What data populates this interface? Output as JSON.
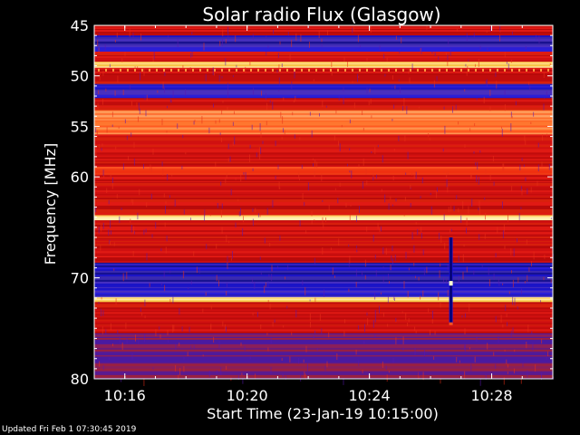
{
  "chart_data": {
    "type": "heatmap",
    "title": "Solar radio Flux (Glasgow)",
    "xlabel": "Start Time (23-Jan-19 10:15:00)",
    "ylabel": "Frequency [MHz]",
    "xlim": [
      "10:15:00",
      "10:30:00"
    ],
    "ylim": [
      45,
      80
    ],
    "y_inverted": true,
    "x_ticks": [
      "10:16",
      "10:20",
      "10:24",
      "10:28"
    ],
    "y_ticks": [
      45,
      50,
      55,
      60,
      70,
      80
    ],
    "grid": false,
    "colormap": "red-temperature (blue = low, red = medium, yellow/white = high)",
    "frequency_bands": [
      {
        "from": 45.0,
        "to": 46.0,
        "level": "medium"
      },
      {
        "from": 46.0,
        "to": 47.6,
        "level": "low"
      },
      {
        "from": 47.6,
        "to": 48.6,
        "level": "medium"
      },
      {
        "from": 48.6,
        "to": 49.2,
        "level": "very-high"
      },
      {
        "from": 49.2,
        "to": 50.8,
        "level": "medium"
      },
      {
        "from": 50.8,
        "to": 52.2,
        "level": "low"
      },
      {
        "from": 52.2,
        "to": 53.4,
        "level": "medium"
      },
      {
        "from": 53.4,
        "to": 55.8,
        "level": "high"
      },
      {
        "from": 55.8,
        "to": 59.0,
        "level": "medium"
      },
      {
        "from": 59.0,
        "to": 59.8,
        "level": "medium-high"
      },
      {
        "from": 59.8,
        "to": 63.8,
        "level": "medium"
      },
      {
        "from": 63.8,
        "to": 64.3,
        "level": "very-high"
      },
      {
        "from": 64.3,
        "to": 68.5,
        "level": "medium"
      },
      {
        "from": 68.5,
        "to": 71.9,
        "level": "low"
      },
      {
        "from": 71.9,
        "to": 72.4,
        "level": "very-high"
      },
      {
        "from": 72.4,
        "to": 75.5,
        "level": "medium"
      },
      {
        "from": 75.5,
        "to": 80.0,
        "level": "low-medium"
      }
    ],
    "events": [
      {
        "type": "broadband spike",
        "time": "10:26:40",
        "freq_from": 66.0,
        "freq_to": 74.5
      }
    ]
  },
  "footer": {
    "updated": "Updated Fri Feb  1 07:30:45 2019"
  }
}
